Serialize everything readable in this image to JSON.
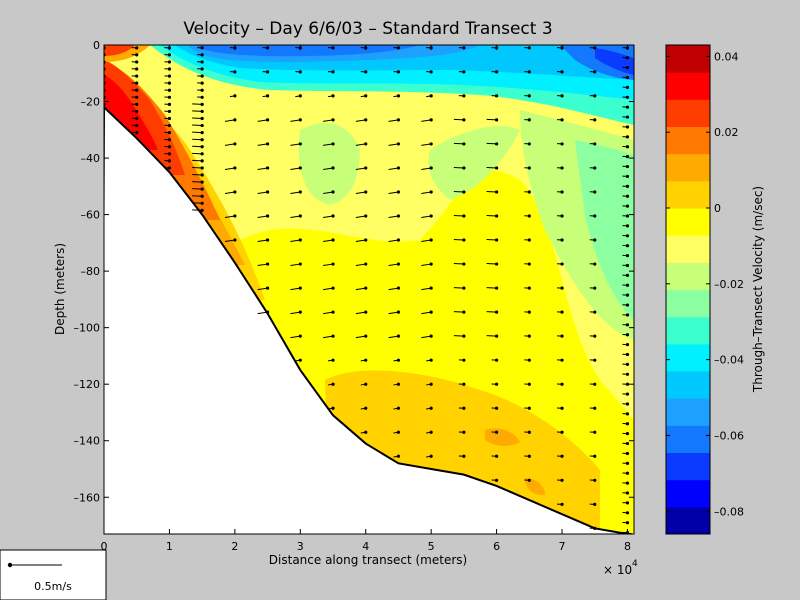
{
  "chart_data": {
    "type": "heatmap",
    "title": "Velocity – Day 6/6/03 – Standard Transect 3",
    "xlabel": "Distance along transect (meters)",
    "ylabel": "Depth (meters)",
    "x_multiplier_label": "× 10",
    "x_multiplier_exp": "4",
    "xlim": [
      0,
      8.1
    ],
    "ylim": [
      -173,
      0
    ],
    "xticks": [
      0,
      1,
      2,
      3,
      4,
      5,
      6,
      7,
      8
    ],
    "yticks": [
      0,
      -20,
      -40,
      -60,
      -80,
      -100,
      -120,
      -140,
      -160
    ],
    "colorbar": {
      "label": "Through–Transect Velocity (m/sec)",
      "range": [
        -0.086,
        0.043
      ],
      "ticks": [
        0.04,
        0.02,
        0,
        -0.02,
        -0.04,
        -0.06,
        -0.08
      ],
      "tick_labels": [
        "0.04",
        "0.02",
        "0",
        "–0.02",
        "–0.04",
        "–0.06",
        "–0.08"
      ],
      "colors": [
        "#0000a8",
        "#0000ff",
        "#0a3cff",
        "#1478ff",
        "#1ea0ff",
        "#00c8ff",
        "#00f0ff",
        "#3cffd0",
        "#8cffa0",
        "#c8ff78",
        "#ffff64",
        "#ffff00",
        "#ffd200",
        "#ffaa00",
        "#ff7800",
        "#ff3c00",
        "#ff0000",
        "#c00000"
      ]
    },
    "bathymetry": {
      "x": [
        0,
        0.5,
        1,
        1.5,
        2,
        2.5,
        3,
        3.5,
        4,
        4.5,
        5,
        5.5,
        6,
        6.5,
        7,
        7.5,
        8,
        8.05
      ],
      "depth": [
        -22,
        -33,
        -45,
        -60,
        -77,
        -95,
        -115,
        -131,
        -141,
        -148,
        -150,
        -152,
        -156,
        -161,
        -166,
        -171,
        -173,
        -173
      ]
    },
    "vector_scale_label": "0.5m/s"
  }
}
